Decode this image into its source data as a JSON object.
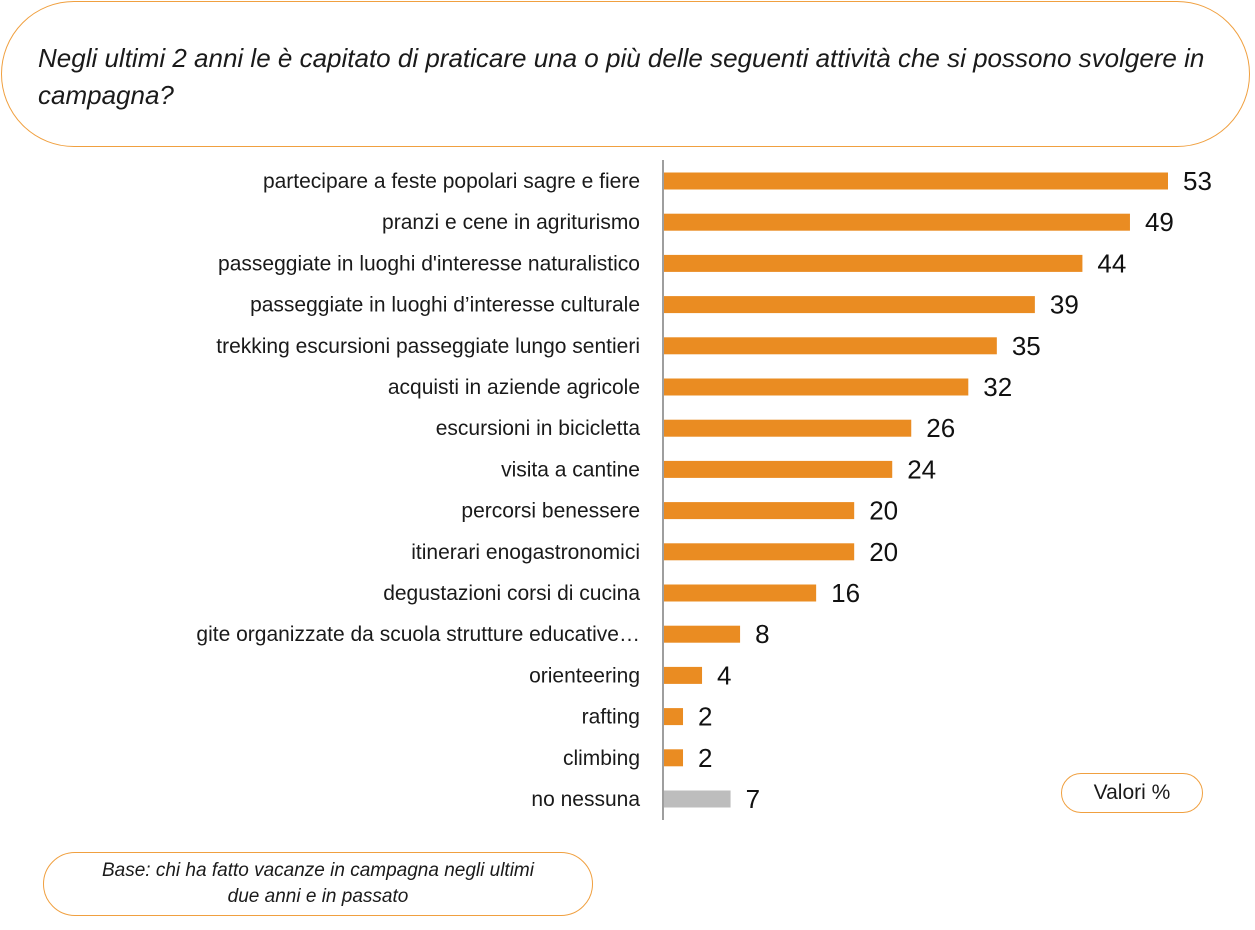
{
  "question": {
    "text": "Negli ultimi 2 anni le è capitato di praticare una o più delle seguenti attività che si possono svolgere in campagna?"
  },
  "note": {
    "unit_label": "Valori %",
    "base_text": "Base: chi ha fatto vacanze in campagna negli ultimi due anni e in passato"
  },
  "colors": {
    "bar": "#ea8c22",
    "bar_none": "#bdbdbd",
    "axis": "#7f7f7f",
    "border": "#f0a040"
  },
  "chart_data": {
    "type": "bar",
    "orientation": "horizontal",
    "categories": [
      "partecipare a feste popolari sagre e fiere",
      "pranzi e cene in agriturismo",
      "passeggiate in luoghi d'interesse naturalistico",
      "passeggiate in luoghi d’interesse culturale",
      "trekking escursioni passeggiate lungo sentieri",
      "acquisti in aziende agricole",
      "escursioni in bicicletta",
      "visita a cantine",
      "percorsi benessere",
      "itinerari enogastronomici",
      "degustazioni corsi di cucina",
      "gite organizzate da scuola strutture educative…",
      "orienteering",
      "rafting",
      "climbing",
      "no nessuna"
    ],
    "values": [
      53,
      49,
      44,
      39,
      35,
      32,
      26,
      24,
      20,
      20,
      16,
      8,
      4,
      2,
      2,
      7
    ],
    "bar_colors": [
      "#ea8c22",
      "#ea8c22",
      "#ea8c22",
      "#ea8c22",
      "#ea8c22",
      "#ea8c22",
      "#ea8c22",
      "#ea8c22",
      "#ea8c22",
      "#ea8c22",
      "#ea8c22",
      "#ea8c22",
      "#ea8c22",
      "#ea8c22",
      "#ea8c22",
      "#bdbdbd"
    ],
    "xlim": [
      0,
      55
    ],
    "grid": false,
    "data_labels": true
  }
}
